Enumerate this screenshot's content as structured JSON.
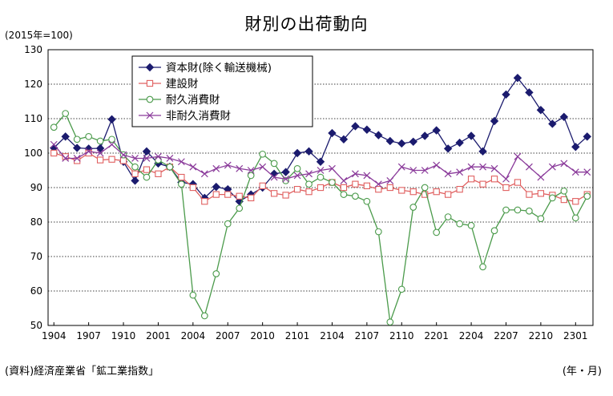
{
  "chart_data": {
    "type": "line",
    "title": "財別の出荷動向",
    "unit_label": "(2015年=100)",
    "source": "(資料)経済産業省「鉱工業指数」",
    "period_label": "(年・月)",
    "xlabel": "",
    "ylabel": "",
    "ylim": [
      50,
      130
    ],
    "yticks": [
      50,
      60,
      70,
      80,
      90,
      100,
      110,
      120,
      130
    ],
    "grid": true,
    "legend_placement": "top-left",
    "x": [
      "1904",
      "1905",
      "1906",
      "1907",
      "1908",
      "1909",
      "1910",
      "1911",
      "1912",
      "2001",
      "2002",
      "2003",
      "2004",
      "2005",
      "2006",
      "2007",
      "2008",
      "2009",
      "2010",
      "2011",
      "2012",
      "2101",
      "2102",
      "2103",
      "2104",
      "2105",
      "2106",
      "2107",
      "2108",
      "2109",
      "2110",
      "2111",
      "2112",
      "2201",
      "2202",
      "2203",
      "2204",
      "2205",
      "2206",
      "2207",
      "2208",
      "2209",
      "2210",
      "2211",
      "2212",
      "2301",
      "2302"
    ],
    "xtick_labels": [
      "1904",
      "1907",
      "1910",
      "2001",
      "2004",
      "2007",
      "2010",
      "2101",
      "2104",
      "2107",
      "2110",
      "2201",
      "2204",
      "2207",
      "2210",
      "2301"
    ],
    "series": [
      {
        "name": "資本財(除く輸送機械)",
        "color": "#1b1b6e",
        "marker": "diamond",
        "values": [
          101.5,
          104.8,
          101.5,
          101.3,
          101.4,
          109.8,
          97.5,
          92.0,
          100.5,
          97.0,
          96.0,
          91.5,
          91.0,
          87.0,
          90.2,
          89.5,
          86.0,
          88.0,
          90.0,
          94.0,
          94.5,
          100.0,
          100.5,
          97.5,
          105.8,
          104.0,
          107.8,
          106.8,
          105.2,
          103.5,
          102.8,
          103.3,
          105.0,
          106.6,
          101.3,
          103.0,
          105.0,
          100.5,
          109.3,
          117.0,
          121.8,
          117.6,
          112.5,
          108.5,
          110.5,
          101.8,
          104.8
        ]
      },
      {
        "name": "建設財",
        "color": "#e06060",
        "marker": "square",
        "values": [
          100.0,
          99.0,
          97.8,
          100.0,
          98.0,
          98.2,
          97.8,
          94.0,
          95.2,
          94.0,
          96.0,
          93.0,
          90.0,
          86.0,
          88.0,
          88.0,
          87.5,
          87.0,
          90.5,
          88.3,
          87.8,
          89.5,
          88.8,
          90.0,
          91.5,
          90.0,
          91.0,
          90.5,
          89.5,
          90.0,
          89.2,
          88.8,
          88.0,
          88.8,
          88.0,
          89.5,
          92.5,
          91.0,
          92.5,
          90.0,
          91.5,
          88.0,
          88.3,
          87.8,
          86.5,
          86.0,
          88.0
        ]
      },
      {
        "name": "耐久消費財",
        "color": "#4a9a4a",
        "marker": "circle",
        "values": [
          107.5,
          111.5,
          104.0,
          104.8,
          103.5,
          104.0,
          99.5,
          96.0,
          93.0,
          98.0,
          96.0,
          91.0,
          58.8,
          52.8,
          65.0,
          79.5,
          84.0,
          93.5,
          99.7,
          97.0,
          92.0,
          95.5,
          91.0,
          93.0,
          91.5,
          88.0,
          87.5,
          86.0,
          77.2,
          51.0,
          60.5,
          84.3,
          90.0,
          77.0,
          81.5,
          79.5,
          79.0,
          67.0,
          77.5,
          83.5,
          83.5,
          83.2,
          81.0,
          87.0,
          89.0,
          81.2,
          87.5
        ]
      },
      {
        "name": "非耐久消費財",
        "color": "#8a3a9a",
        "marker": "x",
        "values": [
          102.5,
          98.5,
          98.5,
          100.5,
          100.0,
          102.5,
          99.5,
          98.5,
          98.5,
          99.0,
          98.5,
          97.5,
          96.0,
          94.0,
          95.5,
          96.5,
          95.5,
          95.0,
          96.0,
          93.0,
          92.5,
          93.5,
          94.0,
          95.0,
          95.5,
          92.0,
          94.0,
          93.5,
          91.0,
          92.0,
          96.0,
          95.0,
          95.0,
          96.5,
          94.0,
          94.5,
          96.0,
          96.0,
          95.5,
          92.5,
          99.0,
          96.0,
          93.0,
          96.0,
          97.0,
          94.5,
          94.5
        ]
      }
    ]
  }
}
